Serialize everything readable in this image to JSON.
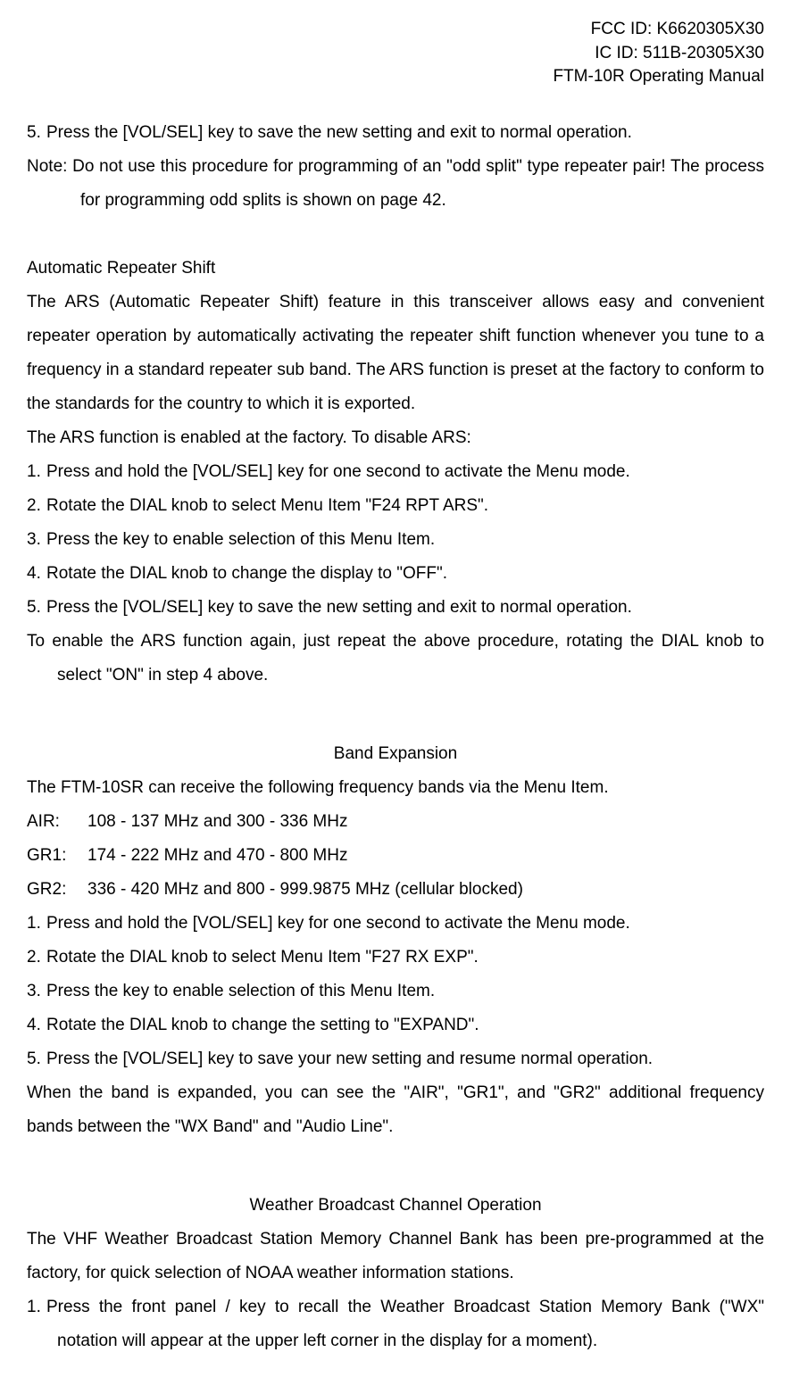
{
  "header": {
    "line1": "FCC ID: K6620305X30",
    "line2": "IC ID: 511B-20305X30",
    "line3": "FTM-10R Operating Manual"
  },
  "top": {
    "item5_num": "5.",
    "item5_text": "Press the [VOL/SEL] key to save the new setting and exit to normal operation.",
    "note_text": "Note:    Do not use this procedure for programming of an \"odd split\" type repeater pair! The process for programming odd splits is shown on page 42."
  },
  "ars": {
    "title": "Automatic Repeater Shift",
    "intro": "The ARS (Automatic Repeater Shift) feature in this transceiver allows easy and convenient repeater operation by automatically activating the repeater shift function whenever you tune to a frequency in a standard repeater sub band. The ARS function is preset at the factory to conform to the standards for the country to which it is exported.",
    "enabled_note": "The ARS function is enabled at the factory. To disable ARS:",
    "items": [
      {
        "num": "1.",
        "text": "Press and hold the [VOL/SEL] key for one second to activate the Menu mode."
      },
      {
        "num": "2.",
        "text": "Rotate the DIAL knob to select Menu Item \"F24 RPT ARS\"."
      },
      {
        "num": "3.",
        "text": "Press the     key to enable selection of this Menu Item."
      },
      {
        "num": "4.",
        "text": "Rotate the DIAL knob to change the display to \"OFF\"."
      },
      {
        "num": "5.",
        "text": "Press the [VOL/SEL] key to save the new setting and exit to normal operation."
      }
    ],
    "closing": "To enable the ARS function again, just repeat the above procedure, rotating the DIAL knob to select \"ON\" in step 4 above."
  },
  "band": {
    "title": "Band Expansion",
    "intro": "The FTM-10SR can receive the following frequency bands via the Menu Item.",
    "bands": [
      {
        "label": "AIR:",
        "range": "108 - 137 MHz and 300 - 336 MHz"
      },
      {
        "label": "GR1:",
        "range": "174 - 222 MHz and 470 - 800 MHz"
      },
      {
        "label": "GR2:",
        "range": "336 - 420 MHz and 800 - 999.9875 MHz (cellular blocked)"
      }
    ],
    "items": [
      {
        "num": "1.",
        "text": "Press and hold the [VOL/SEL] key for one second to activate the Menu mode."
      },
      {
        "num": "2.",
        "text": "Rotate the DIAL knob to select Menu Item \"F27 RX EXP\"."
      },
      {
        "num": "3.",
        "text": "Press the     key to enable selection of this Menu Item."
      },
      {
        "num": "4.",
        "text": "Rotate the DIAL knob to change the setting to \"EXPAND\"."
      },
      {
        "num": "5.",
        "text": "Press the [VOL/SEL] key to save your new setting and resume normal operation."
      }
    ],
    "closing": "When the band is expanded, you can see the \"AIR\", \"GR1\", and \"GR2\" additional frequency bands between the \"WX Band\" and \"Audio Line\"."
  },
  "weather": {
    "title": "Weather Broadcast Channel Operation",
    "intro": "The VHF Weather Broadcast Station Memory Channel Bank has been pre-programmed at the factory, for quick selection of NOAA weather information stations.",
    "item1_num": "1.",
    "item1_text": "Press the front panel   /   key to recall the Weather Broadcast Station Memory Bank (\"WX\" notation will appear at the upper left corner in the display for a moment)."
  }
}
